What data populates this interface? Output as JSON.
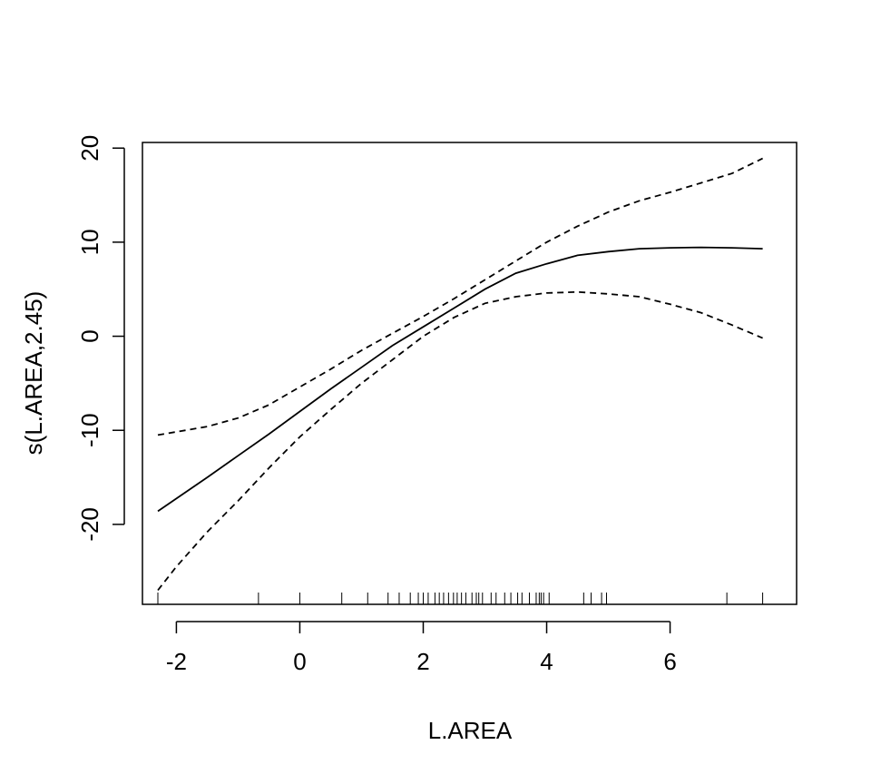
{
  "chart_data": {
    "type": "line",
    "title": "",
    "xlabel": "L.AREA",
    "ylabel": "s(L.AREA,2.45)",
    "xlim": [
      -2.55,
      8.05
    ],
    "ylim": [
      -28.5,
      20.6
    ],
    "x_ticks": [
      -2,
      0,
      2,
      4,
      6
    ],
    "x_tick_labels": [
      "-2",
      "0",
      "2",
      "4",
      "6"
    ],
    "y_ticks": [
      -20,
      -10,
      0,
      10,
      20
    ],
    "y_tick_labels": [
      "-20",
      "-10",
      "0",
      "10",
      "20"
    ],
    "grid": false,
    "legend": "none",
    "series": [
      {
        "line_style": "solid",
        "x": [
          -2.3,
          -1.5,
          -1.0,
          -0.5,
          0.0,
          0.5,
          1.0,
          1.5,
          2.0,
          2.5,
          3.0,
          3.5,
          4.0,
          4.5,
          5.0,
          5.5,
          6.0,
          6.5,
          7.0,
          7.5
        ],
        "y": [
          -18.6,
          -15.0,
          -12.7,
          -10.4,
          -8.0,
          -5.6,
          -3.3,
          -1.0,
          1.0,
          3.0,
          5.0,
          6.7,
          7.7,
          8.6,
          9.0,
          9.3,
          9.4,
          9.45,
          9.4,
          9.3
        ]
      },
      {
        "line_style": "dashed",
        "x": [
          -2.3,
          -1.5,
          -1.0,
          -0.5,
          0.0,
          0.5,
          1.0,
          1.5,
          2.0,
          2.5,
          3.0,
          3.5,
          4.0,
          4.5,
          5.0,
          5.5,
          6.0,
          6.5,
          7.0,
          7.5
        ],
        "y": [
          -10.5,
          -9.6,
          -8.7,
          -7.3,
          -5.4,
          -3.5,
          -1.5,
          0.3,
          2.1,
          4.0,
          6.0,
          8.0,
          10.0,
          11.7,
          13.2,
          14.4,
          15.3,
          16.3,
          17.3,
          18.9
        ]
      },
      {
        "line_style": "dashed",
        "x": [
          -2.3,
          -2.0,
          -1.5,
          -1.0,
          -0.5,
          0.0,
          0.5,
          1.0,
          1.5,
          2.0,
          2.5,
          3.0,
          3.5,
          4.0,
          4.5,
          5.0,
          5.5,
          6.0,
          6.5,
          7.0,
          7.5
        ],
        "y": [
          -27.0,
          -24.5,
          -20.8,
          -17.5,
          -14.0,
          -10.7,
          -7.8,
          -5.0,
          -2.5,
          0.0,
          2.0,
          3.5,
          4.2,
          4.6,
          4.7,
          4.5,
          4.2,
          3.4,
          2.5,
          1.2,
          -0.2
        ]
      }
    ],
    "rug_x": [
      -2.3,
      -0.67,
      0.0,
      0.68,
      1.1,
      1.43,
      1.61,
      1.79,
      1.92,
      2.0,
      2.08,
      2.19,
      2.26,
      2.33,
      2.41,
      2.49,
      2.55,
      2.62,
      2.69,
      2.79,
      2.86,
      2.9,
      2.96,
      3.1,
      3.18,
      3.32,
      3.42,
      3.53,
      3.6,
      3.72,
      3.83,
      3.88,
      3.91,
      3.95,
      4.04,
      4.6,
      4.72,
      4.89,
      4.97,
      6.92,
      7.5
    ]
  }
}
